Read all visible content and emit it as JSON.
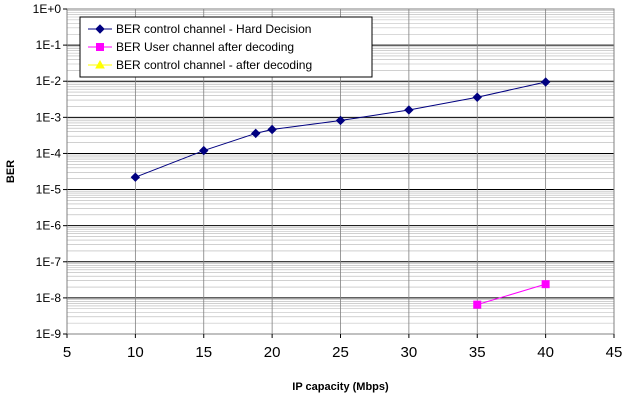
{
  "chart_data": {
    "type": "line",
    "xlabel": "IP capacity (Mbps)",
    "ylabel": "BER",
    "xlim": [
      5,
      45
    ],
    "x_ticks": [
      "5",
      "10",
      "15",
      "20",
      "25",
      "30",
      "35",
      "40",
      "45"
    ],
    "y_scale": "log",
    "ylim": [
      1e-09,
      1
    ],
    "y_ticks": [
      "1E-9",
      "1E-8",
      "1E-7",
      "1E-6",
      "1E-5",
      "1E-4",
      "1E-3",
      "1E-2",
      "1E-1",
      "1E+0"
    ],
    "grid": true,
    "legend_position": "top-left",
    "series": [
      {
        "name": "BER control channel - Hard Decision",
        "color": "#000080",
        "marker": "diamond",
        "x": [
          10,
          15,
          18.8,
          20,
          25,
          30,
          35,
          40
        ],
        "y": [
          2.2e-05,
          0.00012,
          0.00036,
          0.00046,
          0.00082,
          0.0016,
          0.0036,
          0.0095
        ]
      },
      {
        "name": "BER User channel after decoding",
        "color": "#ff00ff",
        "marker": "square",
        "x": [
          35,
          40
        ],
        "y": [
          6.5e-09,
          2.4e-08
        ]
      },
      {
        "name": "BER control channel - after decoding",
        "color": "#ffff00",
        "marker": "triangle",
        "x": [],
        "y": []
      }
    ]
  }
}
